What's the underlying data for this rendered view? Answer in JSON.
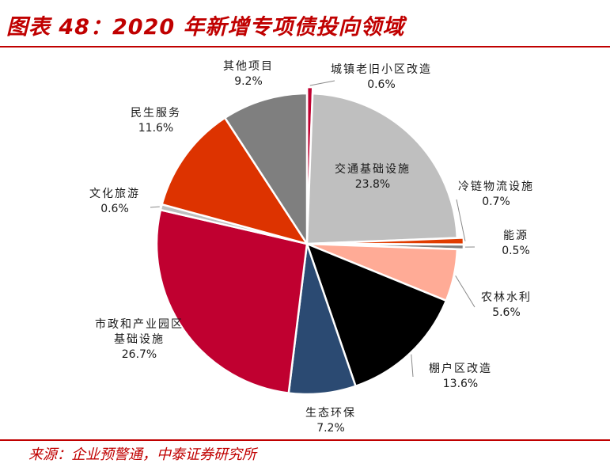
{
  "header": {
    "title": "图表 48：2020 年新增专项债投向领域"
  },
  "footer": {
    "source": "来源：企业预警通，中泰证券研究所"
  },
  "chart_data": {
    "type": "pie",
    "title": "图表 48：2020 年新增专项债投向领域",
    "unit": "%",
    "slices": [
      {
        "name": "城镇老旧小区改造",
        "value": 0.6,
        "label": "0.6%",
        "color": "#c00030"
      },
      {
        "name": "交通基础设施",
        "value": 23.8,
        "label": "23.8%",
        "color": "#bfbfbf"
      },
      {
        "name": "冷链物流设施",
        "value": 0.7,
        "label": "0.7%",
        "color": "#e03c00"
      },
      {
        "name": "能源",
        "value": 0.5,
        "label": "0.5%",
        "color": "#7f7f7f"
      },
      {
        "name": "农林水利",
        "value": 5.6,
        "label": "5.6%",
        "color": "#ffab96"
      },
      {
        "name": "棚户区改造",
        "value": 13.6,
        "label": "13.6%",
        "color": "#000000"
      },
      {
        "name": "生态环保",
        "value": 7.2,
        "label": "7.2%",
        "color": "#2b4a72"
      },
      {
        "name": "市政和产业园区基础设施",
        "name_lines": [
          "市政和产业园区",
          "基础设施"
        ],
        "value": 26.7,
        "label": "26.7%",
        "color": "#c00030"
      },
      {
        "name": "文化旅游",
        "value": 0.6,
        "label": "0.6%",
        "color": "#bfbfbf"
      },
      {
        "name": "民生服务",
        "value": 11.6,
        "label": "11.6%",
        "color": "#dd3300"
      },
      {
        "name": "其他项目",
        "value": 9.2,
        "label": "9.2%",
        "color": "#7f7f7f"
      }
    ]
  }
}
